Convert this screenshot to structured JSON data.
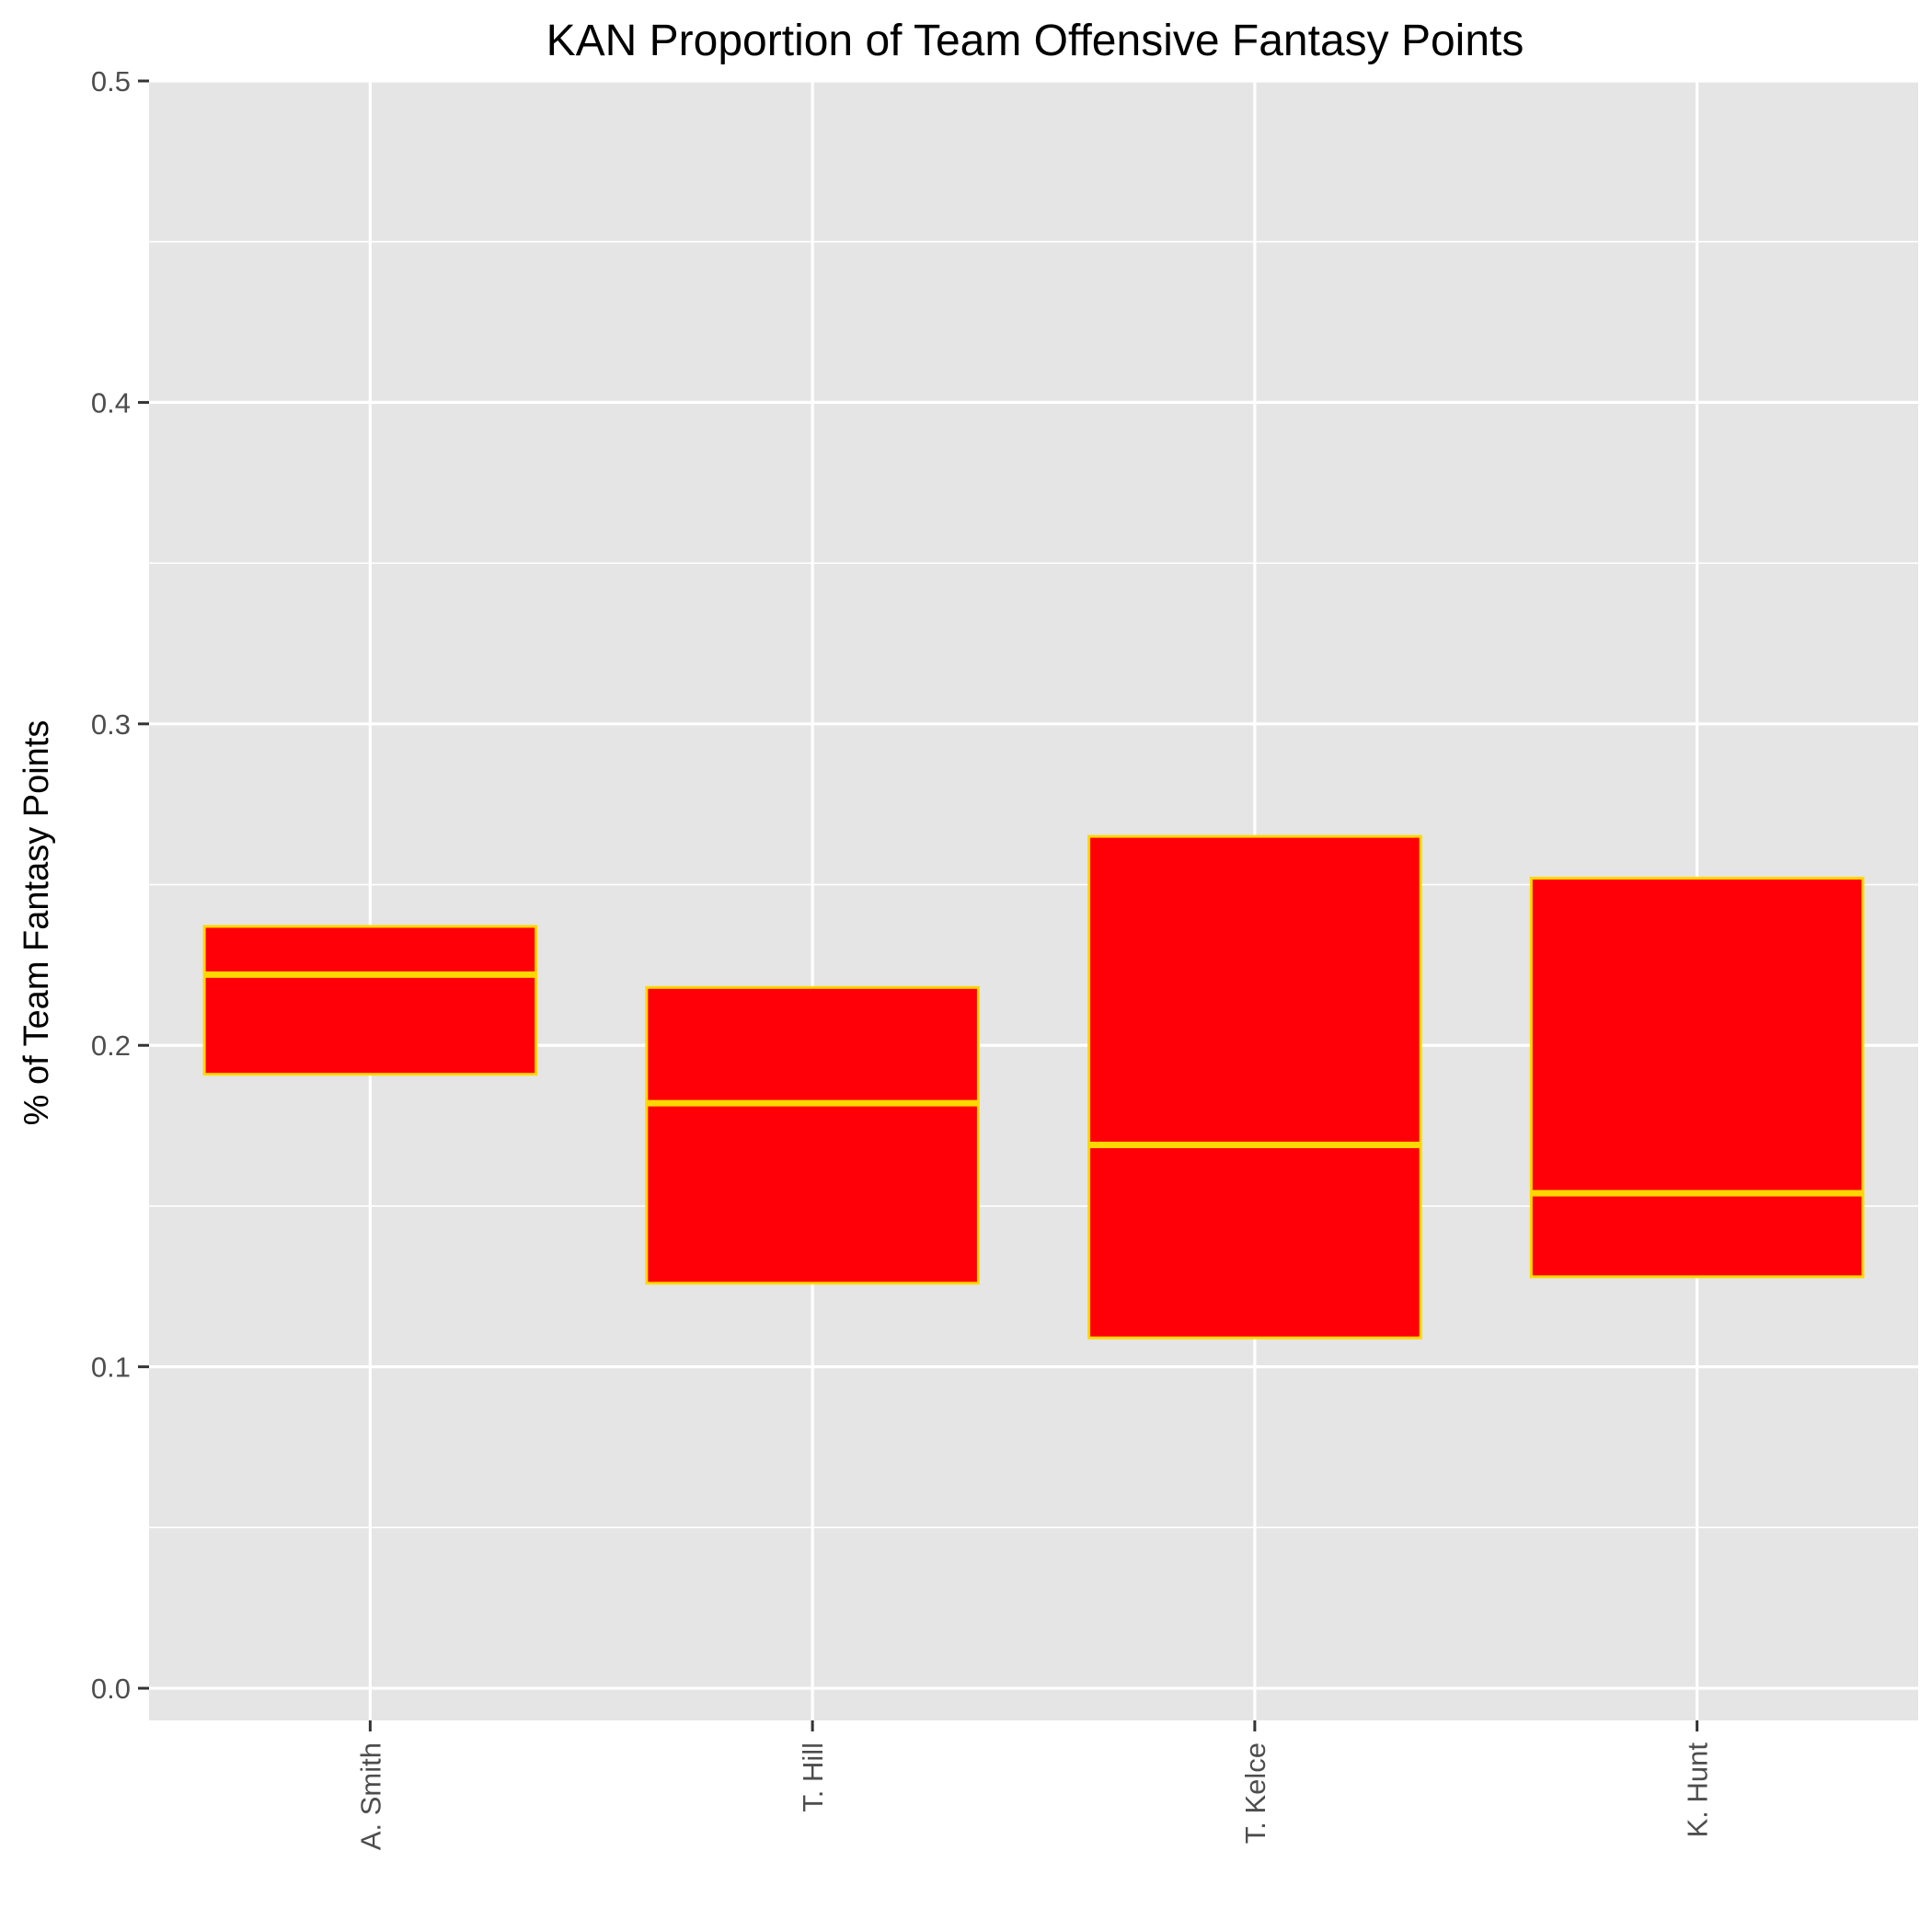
{
  "chart_data": {
    "type": "boxplot",
    "title": "KAN Proportion of Team Offensive Fantasy Points",
    "xlabel": "",
    "ylabel": "% of Team Fantasy Points",
    "ylim": [
      -0.01,
      0.5
    ],
    "yticks": [
      "0.0",
      "0.1",
      "0.2",
      "0.3",
      "0.4",
      "0.5"
    ],
    "ytick_values": [
      0.0,
      0.1,
      0.2,
      0.3,
      0.4,
      0.5
    ],
    "grid": true,
    "categories": [
      "A. Smith",
      "T. Hill",
      "T. Kelce",
      "K. Hunt"
    ],
    "boxes": [
      {
        "name": "A. Smith",
        "q1": 0.191,
        "median": 0.222,
        "q3": 0.237
      },
      {
        "name": "T. Hill",
        "q1": 0.126,
        "median": 0.182,
        "q3": 0.218
      },
      {
        "name": "T. Kelce",
        "q1": 0.109,
        "median": 0.169,
        "q3": 0.265
      },
      {
        "name": "K. Hunt",
        "q1": 0.128,
        "median": 0.154,
        "q3": 0.252
      }
    ],
    "colors": {
      "box_fill": "#ff0009",
      "box_outline": "#ffd700",
      "panel": "#e5e5e5",
      "grid": "#ffffff"
    }
  }
}
